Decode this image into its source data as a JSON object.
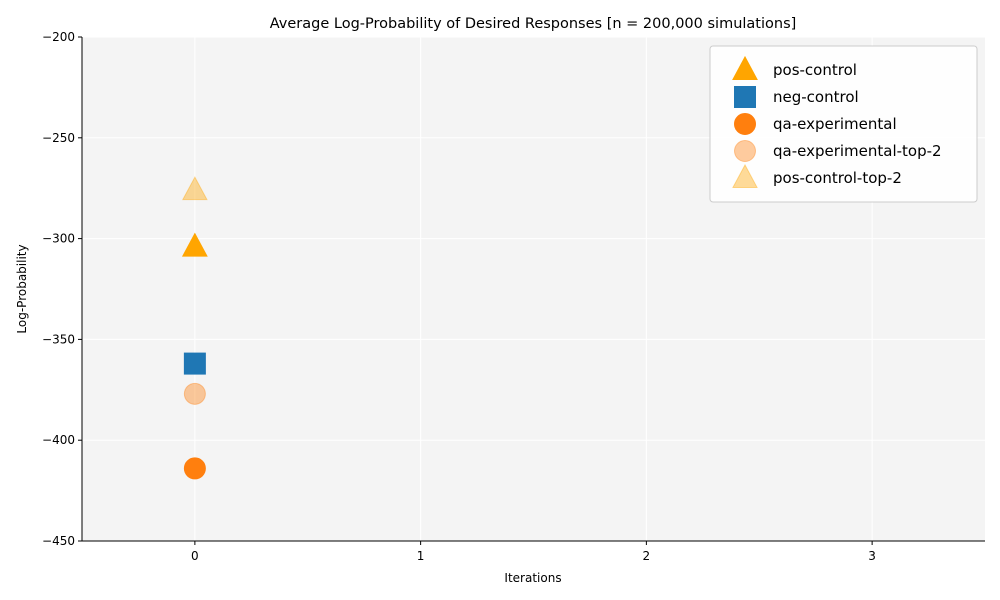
{
  "chart_data": {
    "type": "scatter",
    "title": "Average Log-Probability of Desired Responses [n = 200,000 simulations]",
    "xlabel": "Iterations",
    "ylabel": "Log-Probability",
    "xlim": [
      -0.5,
      3.5
    ],
    "ylim": [
      -450,
      -200
    ],
    "xticks": [
      0,
      1,
      2,
      3
    ],
    "yticks": [
      -450,
      -400,
      -350,
      -300,
      -250,
      -200
    ],
    "xtick_labels": [
      "0",
      "1",
      "2",
      "3"
    ],
    "ytick_labels": [
      "−450",
      "−400",
      "−350",
      "−300",
      "−250",
      "−200"
    ],
    "grid": true,
    "legend_position": "top-right",
    "series": [
      {
        "name": "pos-control",
        "marker": "triangle",
        "color": "#FFA500",
        "alpha": 1.0,
        "x": [
          0
        ],
        "y": [
          -304
        ]
      },
      {
        "name": "neg-control",
        "marker": "square",
        "color": "#1F77B4",
        "alpha": 1.0,
        "x": [
          0
        ],
        "y": [
          -362
        ]
      },
      {
        "name": "qa-experimental",
        "marker": "circle",
        "color": "#FF7F0E",
        "alpha": 1.0,
        "x": [
          0
        ],
        "y": [
          -414
        ]
      },
      {
        "name": "qa-experimental-top-2",
        "marker": "circle",
        "color": "#FF7F0E",
        "alpha": 0.4,
        "x": [
          0
        ],
        "y": [
          -377
        ]
      },
      {
        "name": "pos-control-top-2",
        "marker": "triangle",
        "color": "#FFA500",
        "alpha": 0.4,
        "x": [
          0
        ],
        "y": [
          -276
        ]
      }
    ]
  }
}
